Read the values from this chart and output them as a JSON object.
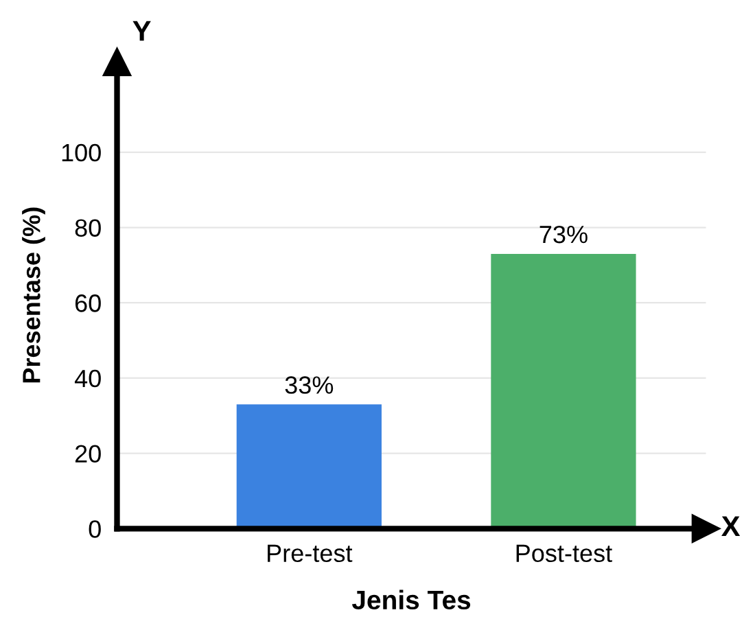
{
  "chart_data": {
    "type": "bar",
    "categories": [
      "Pre-test",
      "Post-test"
    ],
    "values": [
      33,
      73
    ],
    "colors": [
      "#3b82e0",
      "#4caf6a"
    ],
    "value_labels": [
      "33%",
      "73%"
    ],
    "xlabel": "Jenis Tes",
    "ylabel": "Presentase (%)",
    "annotations": [
      "Y",
      "X"
    ],
    "ylim": [
      0,
      124
    ],
    "yticks": [
      0,
      20,
      40,
      60,
      80,
      100
    ],
    "grid": "y",
    "legend": false
  }
}
